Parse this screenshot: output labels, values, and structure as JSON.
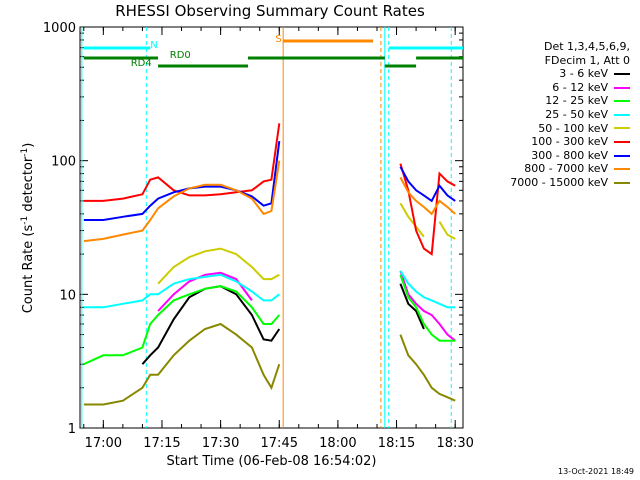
{
  "title": "RHESSI Observing Summary Count Rates",
  "xlabel": "Start Time (06-Feb-08 16:54:02)",
  "ylabel_parts": [
    "Count Rate (s",
    "-1",
    " detector",
    "-1",
    ")"
  ],
  "stamp": "13-Oct-2021 18:49",
  "legend": {
    "header": [
      "Det 1,3,4,5,6,9,",
      "FDecim 1, Att 0"
    ],
    "items": [
      {
        "label": "3 - 6 keV",
        "color": "#000000"
      },
      {
        "label": "6 - 12 keV",
        "color": "#ff00ff"
      },
      {
        "label": "12 - 25 keV",
        "color": "#00ff00"
      },
      {
        "label": "25 - 50 keV",
        "color": "#00ffff"
      },
      {
        "label": "50 - 100 keV",
        "color": "#cccc00"
      },
      {
        "label": "100 - 300 keV",
        "color": "#ff0000"
      },
      {
        "label": "300 - 800 keV",
        "color": "#0000ff"
      },
      {
        "label": "800 - 7000 keV",
        "color": "#ff8800"
      },
      {
        "label": "7000 - 15000 keV",
        "color": "#888800"
      }
    ]
  },
  "chart_data": {
    "type": "line",
    "title": "RHESSI Observing Summary Count Rates",
    "xlabel": "Start Time (06-Feb-08 16:54:02)",
    "ylabel": "Count Rate (s-1 detector-1)",
    "yscale": "log",
    "xlim": [
      "16:54:02",
      "18:32:00"
    ],
    "ylim": [
      1,
      1000
    ],
    "xticks": [
      "17:00",
      "17:15",
      "17:30",
      "17:45",
      "18:00",
      "18:15",
      "18:30"
    ],
    "yticks": [
      "1",
      "10",
      "100",
      "1000"
    ],
    "x": [
      "16:55",
      "17:00",
      "17:05",
      "17:10",
      "17:12",
      "17:14",
      "17:18",
      "17:22",
      "17:26",
      "17:30",
      "17:34",
      "17:38",
      "17:41",
      "17:43",
      "17:45",
      "17:46",
      "18:14",
      "18:16",
      "18:18",
      "18:20",
      "18:22",
      "18:24",
      "18:26",
      "18:28",
      "18:30"
    ],
    "series": [
      {
        "name": "3 - 6 keV",
        "values": [
          null,
          null,
          null,
          3.0,
          3.5,
          4.0,
          6.5,
          9.5,
          11,
          11.5,
          10,
          7,
          4.6,
          4.5,
          5.5,
          null,
          null,
          12,
          8.5,
          7.5,
          5.5,
          null,
          null,
          null,
          null
        ]
      },
      {
        "name": "6 - 12 keV",
        "values": [
          null,
          null,
          null,
          null,
          null,
          7.5,
          10,
          12.5,
          14,
          14.5,
          13,
          9,
          null,
          null,
          null,
          null,
          null,
          15,
          10,
          8.5,
          7.5,
          7,
          6,
          5,
          4.5
        ]
      },
      {
        "name": "12 - 25 keV",
        "values": [
          3,
          3.5,
          3.5,
          4,
          6,
          7,
          9,
          10,
          11,
          11.5,
          10.5,
          8,
          6,
          6,
          7,
          null,
          null,
          14,
          9.5,
          8,
          6,
          5,
          4.5,
          4.5,
          4.5
        ]
      },
      {
        "name": "25 - 50 keV",
        "values": [
          8,
          8,
          8.5,
          9,
          10,
          10,
          12,
          13,
          13.5,
          14,
          12.5,
          10.5,
          9,
          9,
          10,
          null,
          null,
          15,
          12,
          10.5,
          9.5,
          9,
          8.5,
          8,
          8
        ]
      },
      {
        "name": "50 - 100 keV",
        "values": [
          null,
          null,
          null,
          null,
          null,
          12,
          16,
          19,
          21,
          22,
          20,
          16,
          13,
          13,
          14,
          null,
          null,
          48,
          38,
          32,
          27,
          null,
          35,
          28,
          26
        ]
      },
      {
        "name": "100 - 300 keV",
        "values": [
          50,
          50,
          52,
          56,
          72,
          75,
          60,
          55,
          55,
          56,
          58,
          60,
          70,
          72,
          190,
          null,
          null,
          95,
          60,
          30,
          22,
          20,
          80,
          70,
          65
        ]
      },
      {
        "name": "300 - 800 keV",
        "values": [
          36,
          36,
          38,
          40,
          46,
          52,
          58,
          62,
          64,
          64,
          60,
          54,
          46,
          48,
          140,
          null,
          null,
          90,
          70,
          60,
          55,
          50,
          65,
          55,
          50
        ]
      },
      {
        "name": "800 - 7000 keV",
        "values": [
          25,
          26,
          28,
          30,
          36,
          44,
          54,
          62,
          66,
          66,
          60,
          52,
          40,
          42,
          100,
          null,
          null,
          75,
          58,
          50,
          45,
          40,
          50,
          45,
          40
        ]
      },
      {
        "name": "7000 - 15000 keV",
        "values": [
          1.5,
          1.5,
          1.6,
          2,
          2.5,
          2.5,
          3.5,
          4.5,
          5.5,
          6,
          5,
          4,
          2.5,
          2,
          3,
          null,
          null,
          5,
          3.5,
          3,
          2.5,
          2,
          1.8,
          1.7,
          1.6
        ]
      }
    ],
    "annotations": [
      {
        "label": "N",
        "color": "#00ffff"
      },
      {
        "label": "S",
        "color": "#ff8800"
      },
      {
        "label": "RD0",
        "color": "#008000"
      },
      {
        "label": "RD4",
        "color": "#008000"
      }
    ],
    "grid": false,
    "legend_position": "right"
  }
}
